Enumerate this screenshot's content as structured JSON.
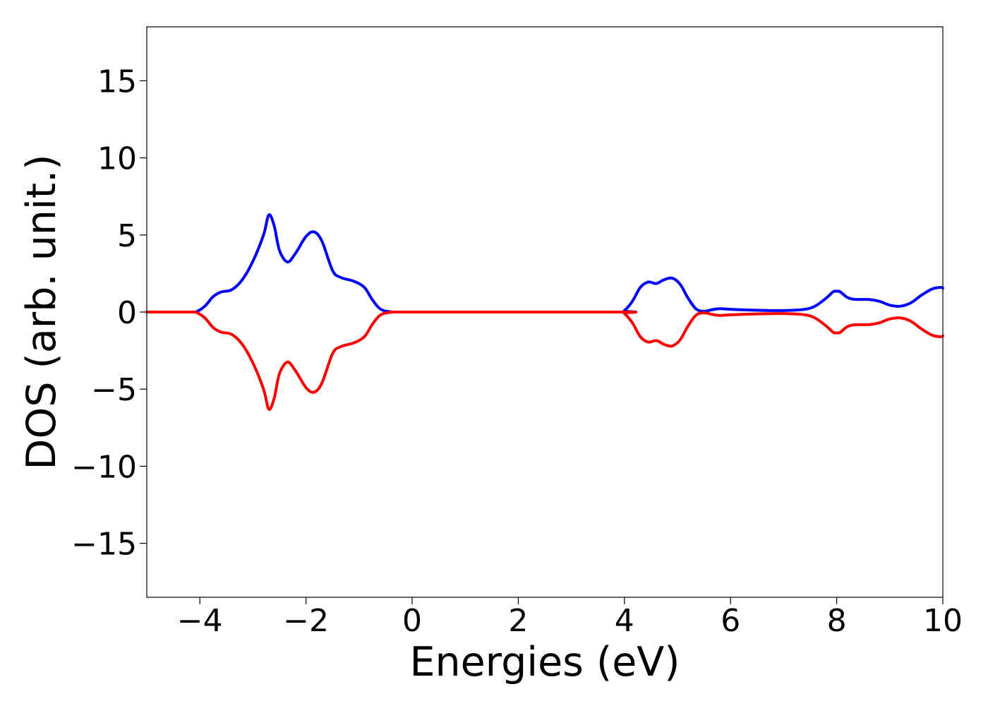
{
  "chart_data": {
    "type": "line",
    "title": "",
    "xlabel": "Energies (eV)",
    "ylabel": "DOS (arb. unit.)",
    "xlim": [
      -5,
      10
    ],
    "ylim": [
      -18.5,
      18.5
    ],
    "grid": false,
    "x_ticks": [
      -4,
      -2,
      0,
      2,
      4,
      6,
      8,
      10
    ],
    "x_tick_labels": [
      "−4",
      "−2",
      "0",
      "2",
      "4",
      "6",
      "8",
      "10"
    ],
    "y_ticks": [
      -15,
      -10,
      -5,
      0,
      5,
      10,
      15
    ],
    "y_tick_labels": [
      "−15",
      "−10",
      "−5",
      "0",
      "5",
      "10",
      "15"
    ],
    "series": [
      {
        "color": "#0000ff",
        "points": [
          [
            -5.0,
            0.0
          ],
          [
            -4.2,
            0.0
          ],
          [
            -4.05,
            0.05
          ],
          [
            -3.9,
            0.4
          ],
          [
            -3.75,
            1.0
          ],
          [
            -3.6,
            1.3
          ],
          [
            -3.4,
            1.45
          ],
          [
            -3.2,
            2.1
          ],
          [
            -3.0,
            3.3
          ],
          [
            -2.8,
            5.0
          ],
          [
            -2.7,
            6.3
          ],
          [
            -2.6,
            5.6
          ],
          [
            -2.5,
            4.0
          ],
          [
            -2.35,
            3.25
          ],
          [
            -2.2,
            3.8
          ],
          [
            -2.0,
            4.9
          ],
          [
            -1.85,
            5.2
          ],
          [
            -1.7,
            4.6
          ],
          [
            -1.5,
            2.7
          ],
          [
            -1.35,
            2.25
          ],
          [
            -1.1,
            2.0
          ],
          [
            -0.9,
            1.6
          ],
          [
            -0.75,
            0.8
          ],
          [
            -0.6,
            0.2
          ],
          [
            -0.4,
            0.02
          ],
          [
            0.0,
            0.0
          ],
          [
            3.9,
            0.0
          ],
          [
            4.0,
            0.1
          ],
          [
            4.15,
            0.7
          ],
          [
            4.3,
            1.6
          ],
          [
            4.45,
            1.95
          ],
          [
            4.6,
            1.85
          ],
          [
            4.75,
            2.1
          ],
          [
            4.9,
            2.2
          ],
          [
            5.05,
            1.8
          ],
          [
            5.2,
            0.9
          ],
          [
            5.35,
            0.2
          ],
          [
            5.5,
            0.05
          ],
          [
            5.65,
            0.15
          ],
          [
            5.8,
            0.22
          ],
          [
            6.0,
            0.18
          ],
          [
            6.5,
            0.12
          ],
          [
            7.0,
            0.1
          ],
          [
            7.4,
            0.18
          ],
          [
            7.6,
            0.4
          ],
          [
            7.8,
            0.9
          ],
          [
            7.95,
            1.35
          ],
          [
            8.05,
            1.35
          ],
          [
            8.2,
            0.95
          ],
          [
            8.35,
            0.82
          ],
          [
            8.6,
            0.82
          ],
          [
            8.8,
            0.7
          ],
          [
            9.0,
            0.45
          ],
          [
            9.2,
            0.38
          ],
          [
            9.4,
            0.6
          ],
          [
            9.6,
            1.1
          ],
          [
            9.8,
            1.5
          ],
          [
            9.95,
            1.6
          ],
          [
            10.0,
            1.55
          ]
        ]
      },
      {
        "color": "#ff0000",
        "points": [
          [
            -5.0,
            0.0
          ],
          [
            -4.2,
            0.0
          ],
          [
            -4.05,
            -0.05
          ],
          [
            -3.9,
            -0.4
          ],
          [
            -3.75,
            -1.0
          ],
          [
            -3.6,
            -1.3
          ],
          [
            -3.4,
            -1.45
          ],
          [
            -3.2,
            -2.1
          ],
          [
            -3.0,
            -3.3
          ],
          [
            -2.8,
            -5.0
          ],
          [
            -2.7,
            -6.3
          ],
          [
            -2.6,
            -5.6
          ],
          [
            -2.5,
            -4.0
          ],
          [
            -2.35,
            -3.25
          ],
          [
            -2.2,
            -3.8
          ],
          [
            -2.0,
            -4.9
          ],
          [
            -1.85,
            -5.2
          ],
          [
            -1.7,
            -4.6
          ],
          [
            -1.5,
            -2.7
          ],
          [
            -1.35,
            -2.25
          ],
          [
            -1.1,
            -2.0
          ],
          [
            -0.9,
            -1.6
          ],
          [
            -0.75,
            -0.8
          ],
          [
            -0.6,
            -0.2
          ],
          [
            -0.4,
            -0.02
          ],
          [
            0.0,
            0.0
          ],
          [
            3.9,
            0.0
          ],
          [
            4.0,
            -0.1
          ],
          [
            4.15,
            -0.7
          ],
          [
            4.3,
            -1.6
          ],
          [
            4.45,
            -1.95
          ],
          [
            4.6,
            -1.85
          ],
          [
            4.75,
            -2.1
          ],
          [
            4.9,
            -2.2
          ],
          [
            5.05,
            -1.8
          ],
          [
            5.2,
            -0.9
          ],
          [
            5.35,
            -0.2
          ],
          [
            5.5,
            -0.05
          ],
          [
            5.65,
            -0.15
          ],
          [
            5.8,
            -0.22
          ],
          [
            6.0,
            -0.18
          ],
          [
            6.5,
            -0.12
          ],
          [
            7.0,
            -0.1
          ],
          [
            7.4,
            -0.18
          ],
          [
            7.6,
            -0.4
          ],
          [
            7.8,
            -0.9
          ],
          [
            7.95,
            -1.35
          ],
          [
            8.05,
            -1.35
          ],
          [
            8.2,
            -0.95
          ],
          [
            8.35,
            -0.82
          ],
          [
            8.6,
            -0.82
          ],
          [
            8.8,
            -0.7
          ],
          [
            9.0,
            -0.45
          ],
          [
            9.2,
            -0.38
          ],
          [
            9.4,
            -0.6
          ],
          [
            9.6,
            -1.1
          ],
          [
            9.8,
            -1.5
          ],
          [
            9.95,
            -1.6
          ],
          [
            10.0,
            -1.55
          ]
        ]
      }
    ]
  }
}
